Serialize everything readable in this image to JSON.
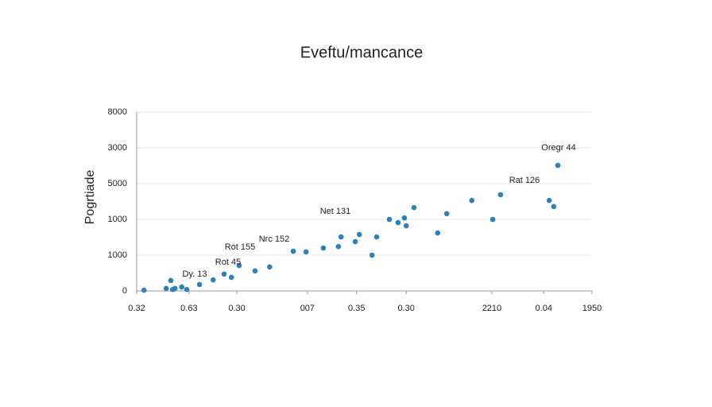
{
  "chart_data": {
    "type": "scatter",
    "title": "Eveftu/mancance",
    "y_label": "Pogrtiade",
    "x": [
      1.6,
      6.5,
      7.5,
      7.9,
      8.4,
      9.9,
      11.0,
      13.8,
      16.8,
      19.2,
      20.8,
      22.5,
      26.0,
      29.2,
      34.4,
      37.2,
      41.0,
      44.3,
      44.9,
      48.0,
      48.9,
      51.7,
      52.7,
      55.5,
      57.4,
      58.8,
      59.2,
      60.9,
      66.1,
      68.1,
      73.6,
      78.2,
      79.9,
      90.6,
      91.6,
      92.5
    ],
    "values": [
      0.02,
      0.07,
      0.29,
      0.04,
      0.07,
      0.11,
      0.04,
      0.18,
      0.31,
      0.47,
      0.38,
      0.71,
      0.56,
      0.67,
      1.11,
      1.09,
      1.2,
      1.24,
      1.51,
      1.38,
      1.58,
      1.0,
      1.51,
      2.0,
      1.91,
      2.04,
      1.82,
      2.33,
      1.62,
      2.16,
      2.53,
      2.0,
      2.69,
      2.53,
      2.36,
      3.51
    ],
    "color": "#2f80b5",
    "xlim": [
      0,
      100
    ],
    "xticks": [
      {
        "value": 0,
        "label": "0.32"
      },
      {
        "value": 11.5,
        "label": "0.63"
      },
      {
        "value": 22.0,
        "label": "0.30"
      },
      {
        "value": 37.5,
        "label": "007"
      },
      {
        "value": 48.3,
        "label": "0.35"
      },
      {
        "value": 59.2,
        "label": "0.30"
      },
      {
        "value": 78.0,
        "label": "2210"
      },
      {
        "value": 89.4,
        "label": "0.04"
      },
      {
        "value": 100,
        "label": "1950"
      }
    ],
    "ylim": [
      0,
      5
    ],
    "yticks": [
      0,
      {
        "value": 1,
        "label": "1000"
      },
      {
        "value": 2,
        "label": "1000"
      },
      {
        "value": 3,
        "label": "5000"
      },
      {
        "value": 4,
        "label": "3000"
      },
      {
        "value": 5,
        "label": "8000"
      }
    ],
    "grid": true,
    "annotations": [
      "Dy. 13",
      "Rot 45",
      "Rot 155",
      "Nrc 152",
      "Net 131",
      "Rat 126",
      "Oregr 44"
    ]
  }
}
